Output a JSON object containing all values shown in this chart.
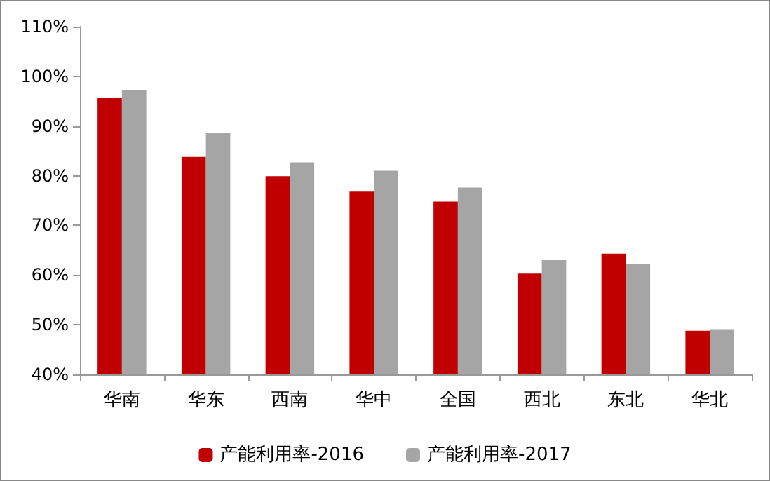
{
  "chart_data": {
    "type": "bar",
    "categories": [
      "华南",
      "华东",
      "西南",
      "华中",
      "全国",
      "西北",
      "东北",
      "华北"
    ],
    "series": [
      {
        "name": "产能利用率-2016",
        "color": "#c00000",
        "values": [
          95.6,
          83.8,
          79.9,
          76.8,
          74.8,
          60.3,
          64.3,
          48.8
        ]
      },
      {
        "name": "产能利用率-2017",
        "color": "#a5a5a5",
        "values": [
          97.3,
          88.6,
          82.7,
          81.0,
          77.6,
          63.0,
          62.3,
          49.1
        ]
      }
    ],
    "ylim": [
      40,
      110
    ],
    "yticks": [
      {
        "value": 40,
        "label": "40%"
      },
      {
        "value": 50,
        "label": "50%"
      },
      {
        "value": 60,
        "label": "60%"
      },
      {
        "value": 70,
        "label": "70%"
      },
      {
        "value": 80,
        "label": "80%"
      },
      {
        "value": 90,
        "label": "90%"
      },
      {
        "value": 100,
        "label": "100%"
      },
      {
        "value": 110,
        "label": "110%"
      }
    ],
    "grid": false,
    "legend": "bottom"
  }
}
